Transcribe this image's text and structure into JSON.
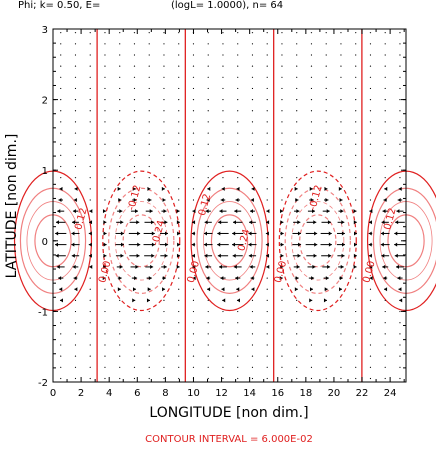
{
  "header": {
    "text_left": "Phi; k= 0.50, E=",
    "text_right": "(logL= 1.0000), n= 64"
  },
  "footer": {
    "contour_interval": "CONTOUR INTERVAL = 6.000E-02"
  },
  "colors": {
    "contour": "#e02020",
    "contour_light": "#f08080",
    "arrow": "#000000",
    "footer_text": "#e02020",
    "axis": "#000000"
  },
  "chart_data": {
    "type": "contour_vector",
    "title": "",
    "xlabel": "LONGITUDE [non dim.]",
    "ylabel": "LATITUDE [non dim.]",
    "xlim": [
      0,
      25.13
    ],
    "ylim": [
      -2,
      3
    ],
    "x_ticks": [
      0,
      2,
      4,
      6,
      8,
      10,
      12,
      14,
      16,
      18,
      20,
      22,
      24
    ],
    "y_ticks": [
      -2,
      -1,
      0,
      1,
      2,
      3
    ],
    "field": {
      "k": 0.5,
      "amplitude": 0.3,
      "contour_interval": 0.06,
      "zero_lines_x": [
        3.14,
        9.42,
        15.71,
        21.99
      ]
    },
    "contour_labels": [
      {
        "text": "0.12",
        "x": 2.2,
        "y": 0.3
      },
      {
        "text": "-0.12",
        "x": 6.0,
        "y": 0.6
      },
      {
        "text": "-0.24",
        "x": 7.7,
        "y": 0.1
      },
      {
        "text": "0.12",
        "x": 11.0,
        "y": 0.5
      },
      {
        "text": "0.24",
        "x": 13.8,
        "y": 0.0
      },
      {
        "text": "-0.12",
        "x": 18.9,
        "y": 0.6
      },
      {
        "text": "0.12",
        "x": 24.2,
        "y": 0.3
      },
      {
        "text": "0.00",
        "x": 3.9,
        "y": -0.45
      },
      {
        "text": "0.00",
        "x": 10.2,
        "y": -0.45
      },
      {
        "text": "0.00",
        "x": 16.4,
        "y": -0.45
      },
      {
        "text": "0.00",
        "x": 22.7,
        "y": -0.45
      }
    ]
  }
}
